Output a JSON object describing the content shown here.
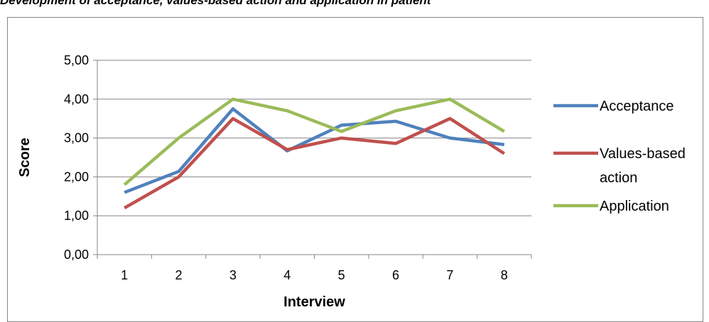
{
  "caption": "Development of acceptance, values-based action and application in patient",
  "chart_data": {
    "type": "line",
    "title": "",
    "xlabel": "Interview",
    "ylabel": "Score",
    "categories": [
      "1",
      "2",
      "3",
      "4",
      "5",
      "6",
      "7",
      "8"
    ],
    "ylim": [
      0,
      5
    ],
    "yticks": [
      "0,00",
      "1,00",
      "2,00",
      "3,00",
      "4,00",
      "5,00"
    ],
    "grid": "horizontal",
    "legend_position": "right",
    "series": [
      {
        "name": "Acceptance",
        "color": "#4f81bd",
        "values": [
          1.6,
          2.14,
          3.75,
          2.67,
          3.33,
          3.43,
          3.0,
          2.83
        ]
      },
      {
        "name": "Values-based action",
        "legend_lines": [
          "Values-based",
          "action"
        ],
        "color": "#c0504d",
        "values": [
          1.2,
          2.0,
          3.5,
          2.7,
          3.0,
          2.86,
          3.5,
          2.6
        ]
      },
      {
        "name": "Application",
        "color": "#9bbb59",
        "values": [
          1.8,
          3.0,
          4.0,
          3.7,
          3.17,
          3.7,
          4.0,
          3.17
        ]
      }
    ]
  }
}
